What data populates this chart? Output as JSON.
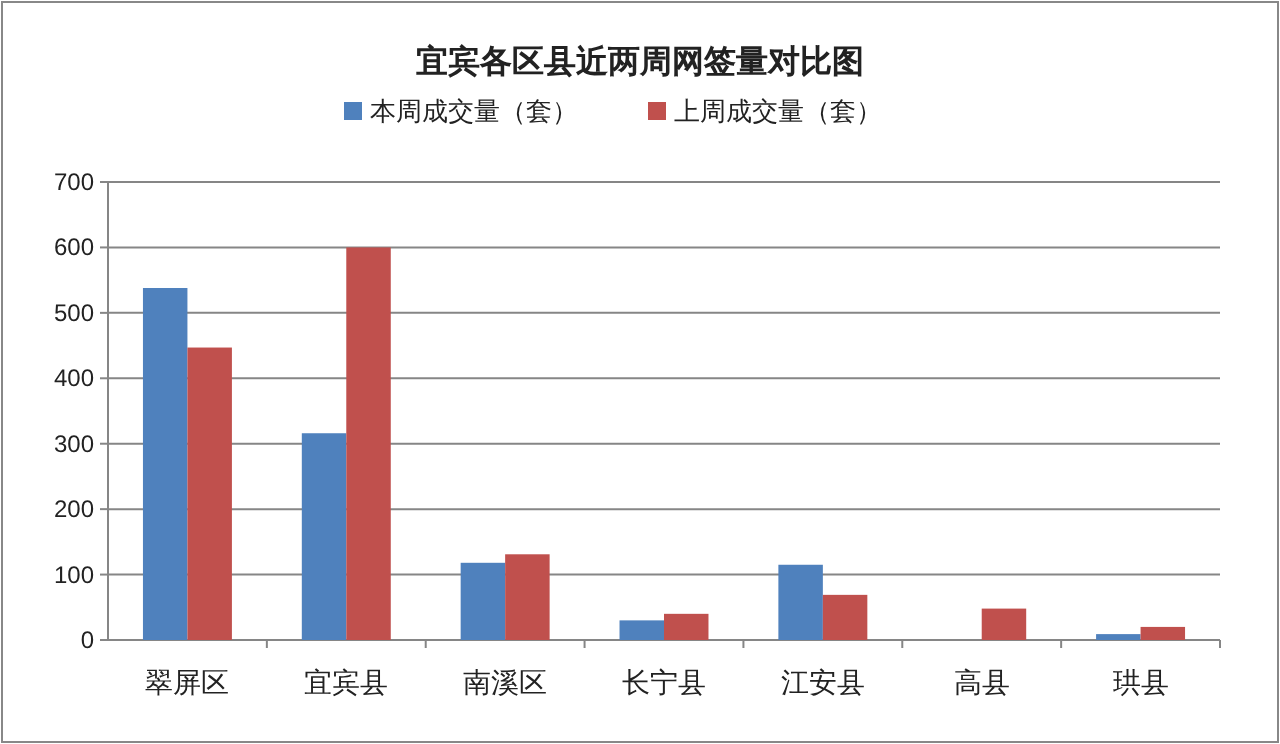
{
  "chart_data": {
    "type": "bar",
    "title": "宜宾各区县近两周网签量对比图",
    "categories": [
      "翠屏区",
      "宜宾县",
      "南溪区",
      "长宁县",
      "江安县",
      "高县",
      "珙县"
    ],
    "series": [
      {
        "name": "本周成交量（套）",
        "color": "#4f81bd",
        "values": [
          538,
          316,
          118,
          30,
          115,
          null,
          9
        ]
      },
      {
        "name": "上周成交量（套）",
        "color": "#c0504d",
        "values": [
          447,
          600,
          131,
          40,
          69,
          48,
          20
        ]
      }
    ],
    "ylim": [
      0,
      700
    ],
    "yticks": [
      0,
      100,
      200,
      300,
      400,
      500,
      600,
      700
    ],
    "grid": "y",
    "legend": "top"
  }
}
